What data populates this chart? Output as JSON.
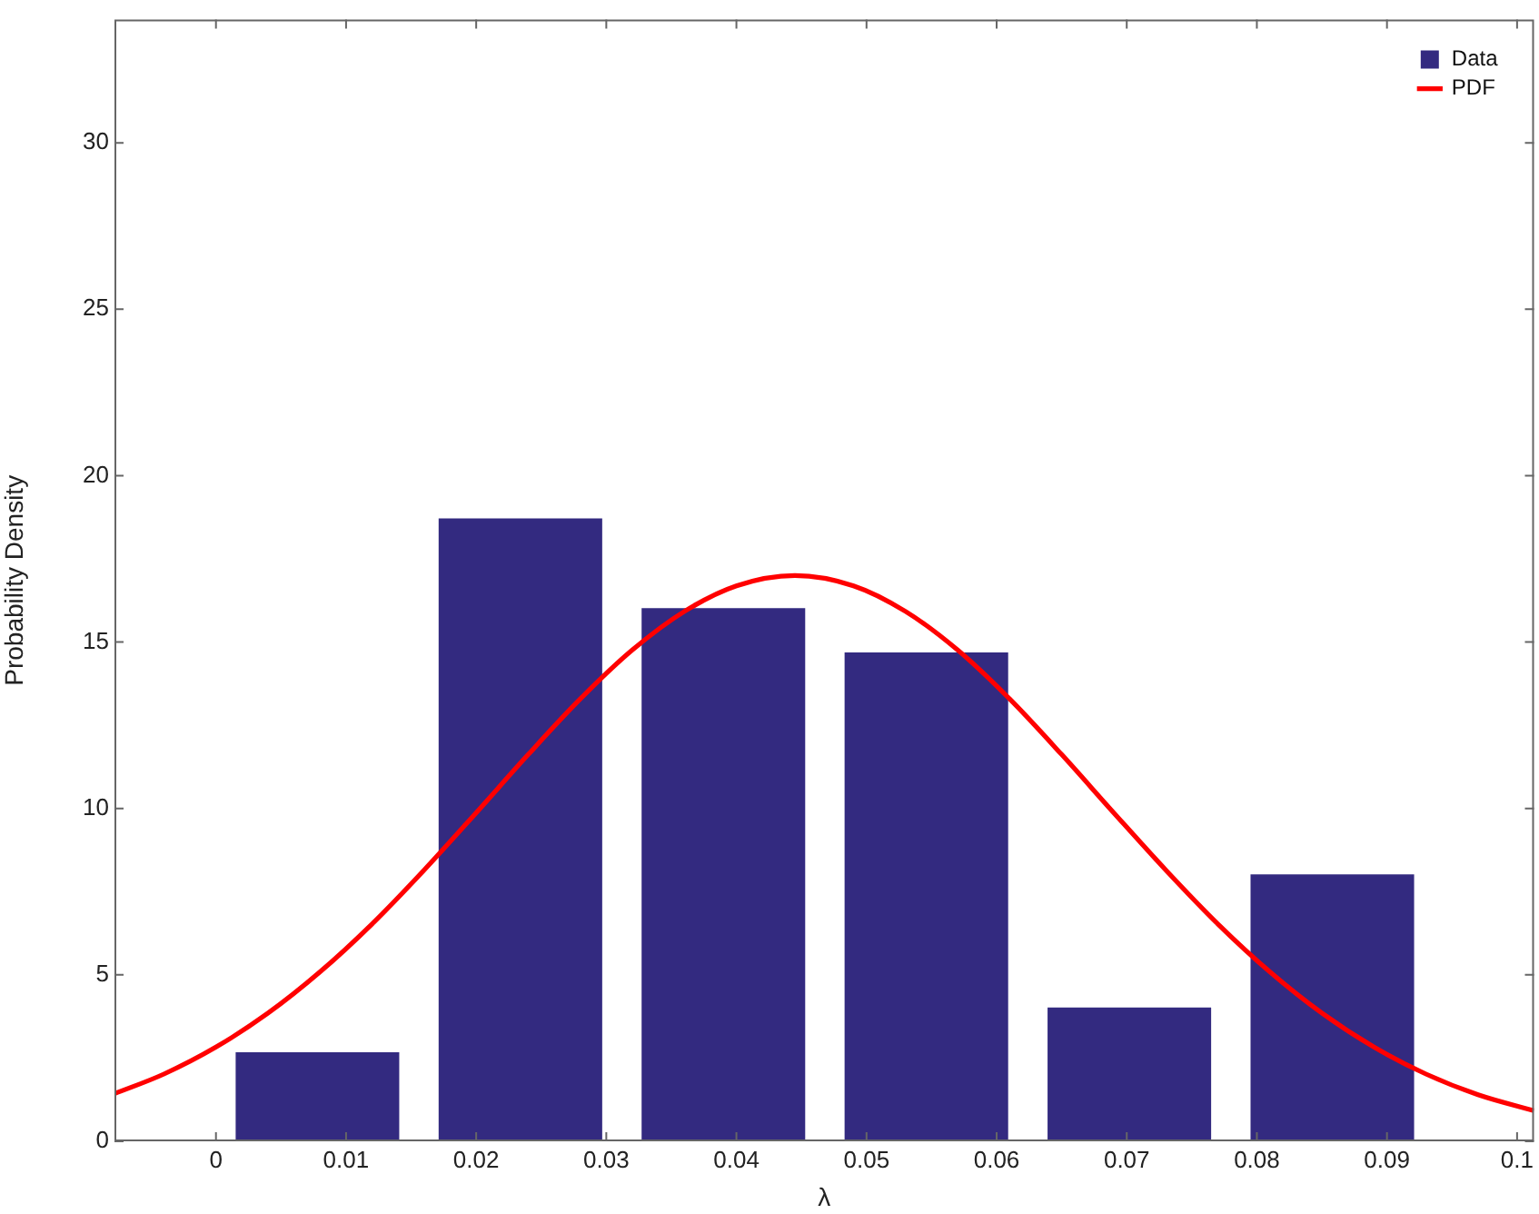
{
  "chart_data": {
    "type": "histogram",
    "xlabel": "λ",
    "ylabel": "Probability Density",
    "bins": [
      0,
      0.0156,
      0.0312,
      0.0468,
      0.0624,
      0.078,
      0.0936
    ],
    "series": [
      {
        "name": "Data",
        "color": "#332a80",
        "values": [
          2.66,
          18.7,
          16.0,
          14.67,
          4.0,
          8.0
        ]
      },
      {
        "name": "PDF",
        "type": "line",
        "color": "#ff0000",
        "x": [
          -0.0078,
          -0.004,
          0,
          0.004,
          0.008,
          0.012,
          0.016,
          0.02,
          0.024,
          0.028,
          0.032,
          0.036,
          0.04,
          0.0445,
          0.049,
          0.053,
          0.057,
          0.061,
          0.065,
          0.069,
          0.073,
          0.077,
          0.081,
          0.085,
          0.089,
          0.093,
          0.097,
          0.1013
        ],
        "values": [
          1.43,
          2.02,
          2.83,
          3.85,
          5.09,
          6.53,
          8.15,
          9.87,
          11.62,
          13.29,
          14.76,
          15.92,
          16.69,
          17.0,
          16.69,
          15.92,
          14.76,
          13.29,
          11.62,
          9.87,
          8.15,
          6.53,
          5.09,
          3.85,
          2.83,
          2.02,
          1.4,
          0.92
        ]
      }
    ],
    "xlim": [
      -0.0078,
      0.1013
    ],
    "xticks": [
      0,
      0.01,
      0.02,
      0.03,
      0.04,
      0.05,
      0.06,
      0.07,
      0.08,
      0.09,
      0.1
    ],
    "ylim": [
      0,
      33.7
    ],
    "yticks": [
      0,
      5,
      10,
      15,
      20,
      25,
      30
    ],
    "grid": false,
    "legend": "top right"
  }
}
